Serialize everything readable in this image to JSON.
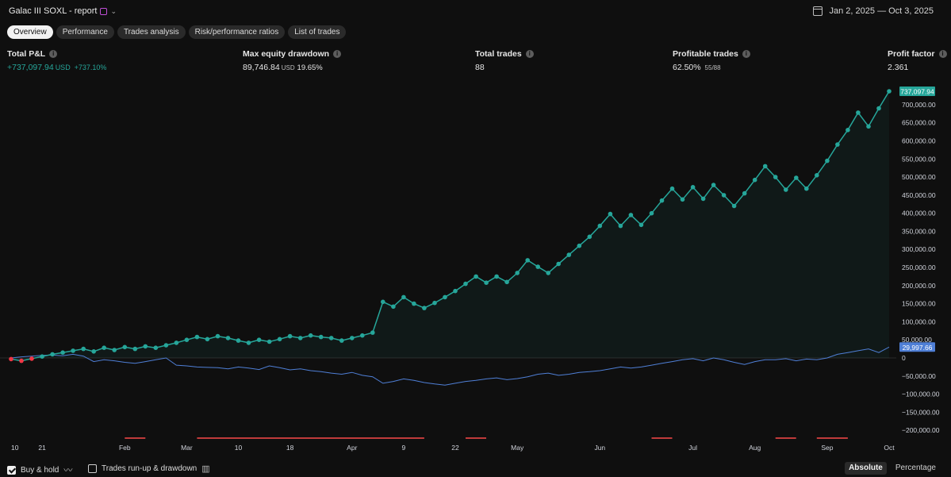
{
  "report": {
    "title": "Galac III SOXL - report",
    "date_range": "Jan 2, 2025 — Oct 3, 2025"
  },
  "tabs": [
    {
      "label": "Overview",
      "active": true
    },
    {
      "label": "Performance"
    },
    {
      "label": "Trades analysis"
    },
    {
      "label": "Risk/performance ratios"
    },
    {
      "label": "List of trades"
    }
  ],
  "stats": {
    "total_pnl": {
      "label": "Total P&L",
      "value": "+737,097.94",
      "unit": "USD",
      "pct": "+737.10%"
    },
    "max_dd": {
      "label": "Max equity drawdown",
      "value": "89,746.84",
      "unit": "USD",
      "pct": "19.65%"
    },
    "total_trades": {
      "label": "Total trades",
      "value": "88"
    },
    "profitable": {
      "label": "Profitable trades",
      "value": "62.50%",
      "sub": "55/88"
    },
    "profit_factor": {
      "label": "Profit factor",
      "value": "2.361"
    }
  },
  "chart_data": {
    "type": "line",
    "y_axis": {
      "side": "right",
      "min": -200000,
      "max": 737097.94,
      "ticks": [
        700000,
        650000,
        600000,
        550000,
        500000,
        450000,
        400000,
        350000,
        300000,
        250000,
        200000,
        150000,
        100000,
        50000,
        0,
        -50000,
        -100000,
        -150000,
        -200000
      ],
      "tick_labels": [
        "700,000.00",
        "650,000.00",
        "600,000.00",
        "550,000.00",
        "500,000.00",
        "450,000.00",
        "400,000.00",
        "350,000.00",
        "300,000.00",
        "250,000.00",
        "200,000.00",
        "150,000.00",
        "100,000.00",
        "50,000.00",
        "0",
        "−50,000.00",
        "−100,000.00",
        "−150,000.00",
        "−200,000.00"
      ]
    },
    "x_axis": {
      "labels": [
        "10",
        "21",
        "Feb",
        "Mar",
        "10",
        "18",
        "Apr",
        "9",
        "22",
        "May",
        "Jun",
        "Jul",
        "Aug",
        "Sep",
        "Oct"
      ],
      "label_trade_index": [
        0,
        3,
        11,
        17,
        22,
        27,
        33,
        38,
        43,
        49,
        57,
        66,
        72,
        79,
        85
      ]
    },
    "series": [
      {
        "role": "strategy-equity",
        "color": "#26a69a",
        "loss_color": "#f23645",
        "last_value_label": "737,097.94",
        "values": [
          -3000,
          -8000,
          -2000,
          4000,
          10000,
          15000,
          20000,
          25000,
          18000,
          28000,
          22000,
          30000,
          25000,
          32000,
          28000,
          35000,
          42000,
          50000,
          58000,
          52000,
          60000,
          55000,
          48000,
          42000,
          50000,
          45000,
          52000,
          60000,
          55000,
          62000,
          58000,
          55000,
          48000,
          55000,
          62000,
          70000,
          155000,
          142000,
          168000,
          150000,
          138000,
          152000,
          168000,
          185000,
          205000,
          225000,
          208000,
          225000,
          210000,
          235000,
          270000,
          252000,
          235000,
          260000,
          285000,
          310000,
          335000,
          365000,
          398000,
          365000,
          395000,
          368000,
          400000,
          435000,
          468000,
          438000,
          472000,
          440000,
          478000,
          450000,
          420000,
          455000,
          492000,
          530000,
          500000,
          465000,
          498000,
          468000,
          505000,
          545000,
          590000,
          630000,
          678000,
          640000,
          690000,
          737097.94
        ]
      },
      {
        "role": "buy-and-hold",
        "name": "Buy & hold",
        "color": "#4f7fd6",
        "last_value_label": "29,997.66",
        "values": [
          0,
          3000,
          5000,
          7000,
          8000,
          6000,
          10000,
          5000,
          -10000,
          -5000,
          -8000,
          -12000,
          -15000,
          -10000,
          -5000,
          0,
          -20000,
          -22000,
          -25000,
          -26000,
          -27000,
          -30000,
          -25000,
          -28000,
          -32000,
          -22000,
          -27000,
          -33000,
          -30000,
          -35000,
          -38000,
          -42000,
          -45000,
          -40000,
          -48000,
          -52000,
          -70000,
          -65000,
          -58000,
          -62000,
          -68000,
          -72000,
          -75000,
          -70000,
          -65000,
          -62000,
          -58000,
          -55000,
          -60000,
          -57000,
          -52000,
          -45000,
          -42000,
          -48000,
          -45000,
          -40000,
          -38000,
          -35000,
          -30000,
          -25000,
          -28000,
          -25000,
          -20000,
          -15000,
          -10000,
          -5000,
          -2000,
          -8000,
          0,
          -5000,
          -12000,
          -18000,
          -10000,
          -5000,
          -5000,
          -2000,
          -8000,
          -3000,
          -5000,
          0,
          10000,
          15000,
          20000,
          25000,
          15000,
          29997.66
        ]
      }
    ],
    "drawdown_periods_trade_index": [
      [
        11,
        13
      ],
      [
        18,
        40
      ],
      [
        44,
        46
      ],
      [
        62,
        64
      ],
      [
        74,
        76
      ],
      [
        78,
        81
      ]
    ],
    "drawdown_color": "#c03a3a"
  },
  "footer": {
    "buy_hold": {
      "label": "Buy & hold",
      "checked": true
    },
    "runup": {
      "label": "Trades run-up & drawdown",
      "checked": false
    },
    "modes": [
      {
        "label": "Absolute",
        "active": true
      },
      {
        "label": "Percentage"
      }
    ]
  }
}
